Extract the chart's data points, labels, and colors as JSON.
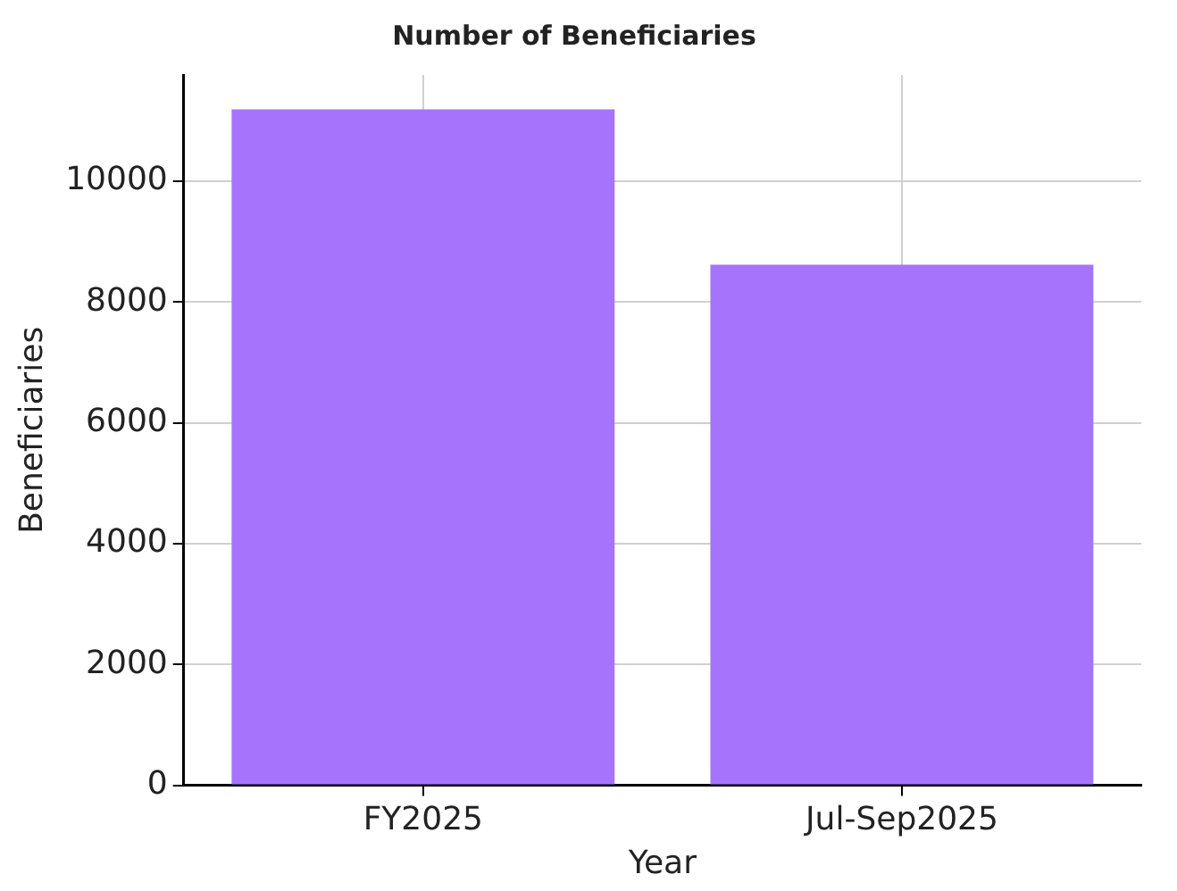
{
  "chart_data": {
    "type": "bar",
    "title": "Number of Beneficiaries",
    "xlabel": "Year",
    "ylabel": "Beneficiaries",
    "categories": [
      "FY2025",
      "Jul-Sep2025"
    ],
    "values": [
      11190,
      8620
    ],
    "color": "#a673fd",
    "ylim": [
      0,
      11760
    ],
    "yticks": [
      0,
      2000,
      4000,
      6000,
      8000,
      10000
    ],
    "grid": true
  }
}
